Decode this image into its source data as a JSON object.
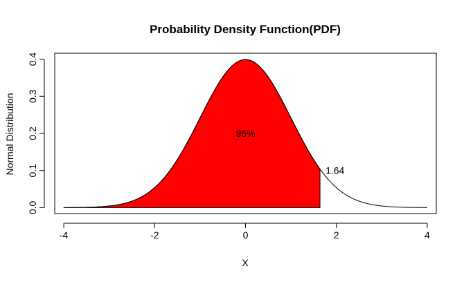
{
  "chart_data": {
    "type": "area",
    "title": "Probability Density Function(PDF)",
    "xlabel": "X",
    "ylabel": "Normal Distribution",
    "xlim": [
      -4.2,
      4.2
    ],
    "ylim": [
      -0.016,
      0.416
    ],
    "x_ticks": [
      -4,
      -2,
      0,
      2,
      4
    ],
    "y_ticks": [
      0.0,
      0.1,
      0.2,
      0.3,
      0.4
    ],
    "x_tick_labels": [
      "-4",
      "-2",
      "0",
      "2",
      "4"
    ],
    "y_tick_labels": [
      "0.0",
      "0.1",
      "0.2",
      "0.3",
      "0.4"
    ],
    "curve": {
      "distribution": "standard normal",
      "mean": 0,
      "sd": 1,
      "x_range": [
        -4,
        4
      ],
      "line_color": "#000000"
    },
    "shaded_region": {
      "x_from": -4,
      "x_to": 1.64,
      "fill_color": "#ff0000"
    },
    "annotations": [
      {
        "text": "95%",
        "x": 0,
        "y": 0.2
      },
      {
        "text": "1.64",
        "x": 1.64,
        "y": 0.1
      }
    ],
    "grid": false,
    "legend": "none"
  }
}
